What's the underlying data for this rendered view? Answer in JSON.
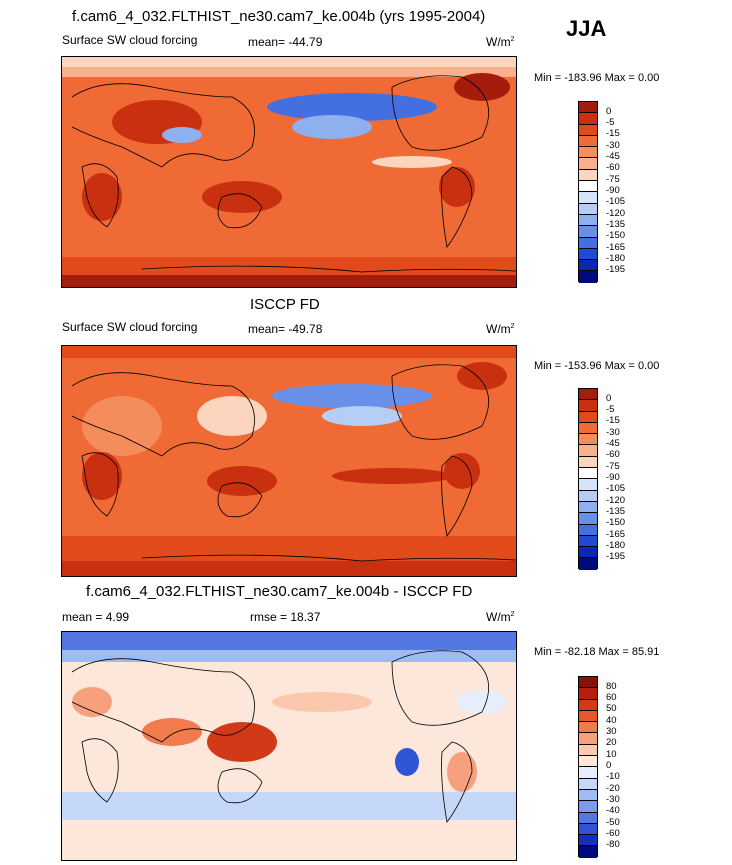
{
  "season": "JJA",
  "panels": [
    {
      "title": "f.cam6_4_032.FLTHIST_ne30.cam7_ke.004b (yrs 1995-2004)",
      "left_label": "Surface SW cloud forcing",
      "center_label": "mean= -44.79",
      "units": "W/m",
      "units_exp": "2",
      "minmax": "Min = -183.96 Max =   0.00",
      "colorbar": {
        "labels": [
          "0",
          "-5",
          "-15",
          "-30",
          "-45",
          "-60",
          "-75",
          "-90",
          "-105",
          "-120",
          "-135",
          "-150",
          "-165",
          "-180",
          "-195"
        ],
        "colors": [
          "#a51c0d",
          "#c8300f",
          "#e14a1a",
          "#ef6a35",
          "#f48c5b",
          "#f8b08d",
          "#fcd5bf",
          "#ffffff",
          "#d6e4fa",
          "#b6cdf5",
          "#8fb0ef",
          "#6890e8",
          "#436fe0",
          "#1f4ad2",
          "#0a28b0",
          "#000a78"
        ]
      }
    },
    {
      "title": "ISCCP FD",
      "left_label": "Surface SW cloud forcing",
      "center_label": "mean= -49.78",
      "units": "W/m",
      "units_exp": "2",
      "minmax": "Min = -153.96 Max =   0.00",
      "colorbar": {
        "labels": [
          "0",
          "-5",
          "-15",
          "-30",
          "-45",
          "-60",
          "-75",
          "-90",
          "-105",
          "-120",
          "-135",
          "-150",
          "-165",
          "-180",
          "-195"
        ],
        "colors": [
          "#a51c0d",
          "#c8300f",
          "#e14a1a",
          "#ef6a35",
          "#f48c5b",
          "#f8b08d",
          "#fcd5bf",
          "#ffffff",
          "#d6e4fa",
          "#b6cdf5",
          "#8fb0ef",
          "#6890e8",
          "#436fe0",
          "#1f4ad2",
          "#0a28b0",
          "#000a78"
        ]
      }
    },
    {
      "title": "f.cam6_4_032.FLTHIST_ne30.cam7_ke.004b - ISCCP FD",
      "left_label": "mean =   4.99",
      "center_label": "rmse =  18.37",
      "units": "W/m",
      "units_exp": "2",
      "minmax": "Min = -82.18 Max =  85.91",
      "colorbar": {
        "labels": [
          "80",
          "60",
          "50",
          "40",
          "30",
          "20",
          "10",
          "0",
          "-10",
          "-20",
          "-30",
          "-40",
          "-50",
          "-60",
          "-80"
        ],
        "colors": [
          "#8a0f05",
          "#b5200c",
          "#d23a17",
          "#e8582a",
          "#f27b4e",
          "#f7a07d",
          "#fbc8ad",
          "#fde6da",
          "#e6eefc",
          "#c6d8f8",
          "#9fbcf2",
          "#7a9bea",
          "#5478e2",
          "#2f54d6",
          "#1230b8",
          "#000a80"
        ]
      }
    }
  ]
}
